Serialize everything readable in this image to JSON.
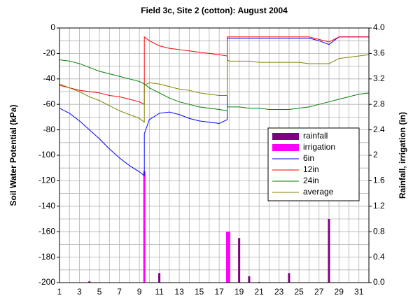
{
  "chart_data": {
    "type": "line",
    "title": "Field 3c, Site 2 (cotton):  August 2004",
    "ylabel": "Soil Water Potential  (kPa)",
    "y2label": "Rainfall, irrigation  (in)",
    "xlim": [
      1,
      32
    ],
    "xticks": [
      1,
      3,
      5,
      7,
      9,
      11,
      13,
      15,
      17,
      19,
      21,
      23,
      25,
      27,
      29,
      31
    ],
    "ylim": [
      -200,
      0
    ],
    "yticks": [
      -200,
      -180,
      -160,
      -140,
      -120,
      -100,
      -80,
      -60,
      -40,
      -20,
      0
    ],
    "y2lim": [
      0,
      4
    ],
    "y2ticks": [
      {
        "value": 0,
        "label": "0.0"
      },
      0.4,
      0.8,
      1.2,
      1.6,
      2,
      2.4,
      2.8,
      3.2,
      3.6,
      {
        "value": 4,
        "label": "4.0"
      }
    ],
    "grid": true,
    "minor_grid": true,
    "legend": "center-right",
    "series": [
      {
        "name": "rainfall",
        "type": "bar",
        "axis": "y2",
        "color": "#800080",
        "x": [
          4,
          11,
          19,
          20,
          21,
          24,
          28
        ],
        "values": [
          0.02,
          0.15,
          0.7,
          0.1,
          0.01,
          0.15,
          1.0
        ]
      },
      {
        "name": "irrigation",
        "type": "bar",
        "axis": "y2",
        "color": "#ff00ff",
        "x": [
          9.5,
          17.8,
          18
        ],
        "values": [
          1.75,
          0.8,
          0.8
        ]
      },
      {
        "name": "6in",
        "type": "line",
        "color": "#0000ff",
        "x": [
          1,
          2,
          3,
          4,
          5,
          6,
          7,
          8,
          9,
          9.5,
          9.5,
          10,
          11,
          12,
          13,
          14,
          15,
          16,
          17,
          17.8,
          17.8,
          18,
          19,
          20,
          21,
          22,
          23,
          24,
          25,
          26,
          27,
          28,
          29,
          30,
          31,
          32
        ],
        "values": [
          -63,
          -67,
          -73,
          -80,
          -87,
          -95,
          -102,
          -108,
          -113,
          -116,
          -83,
          -72,
          -67,
          -66,
          -68,
          -71,
          -73,
          -74,
          -75,
          -72,
          -8,
          -8,
          -8,
          -8,
          -8,
          -8,
          -8,
          -8,
          -8,
          -8,
          -10,
          -13,
          -7,
          -7,
          -7,
          -7
        ]
      },
      {
        "name": "12in",
        "type": "line",
        "color": "#ff0000",
        "x": [
          1,
          2,
          3,
          4,
          5,
          6,
          7,
          8,
          9,
          9.5,
          9.5,
          10,
          11,
          12,
          13,
          14,
          15,
          16,
          17,
          17.8,
          17.8,
          18,
          19,
          20,
          21,
          22,
          23,
          24,
          25,
          26,
          27,
          28,
          29,
          30,
          31,
          32
        ],
        "values": [
          -45,
          -47,
          -49,
          -50,
          -51,
          -53,
          -54,
          -56,
          -58,
          -60,
          -7,
          -10,
          -14,
          -16,
          -17,
          -18,
          -19,
          -20,
          -21,
          -22,
          -7,
          -7,
          -7,
          -7,
          -7,
          -7,
          -7,
          -7,
          -7,
          -7,
          -9,
          -11,
          -7,
          -7,
          -7,
          -7
        ]
      },
      {
        "name": "24in",
        "type": "line",
        "color": "#008000",
        "x": [
          1,
          2,
          3,
          4,
          5,
          6,
          7,
          8,
          9,
          9.5,
          9.5,
          10,
          11,
          12,
          13,
          14,
          15,
          16,
          17,
          17.8,
          17.8,
          18,
          19,
          20,
          21,
          22,
          23,
          24,
          25,
          26,
          27,
          28,
          29,
          30,
          31,
          32
        ],
        "values": [
          -25,
          -26,
          -28,
          -31,
          -34,
          -36,
          -38,
          -40,
          -42,
          -44,
          -44,
          -47,
          -51,
          -55,
          -58,
          -60,
          -62,
          -63,
          -64,
          -65,
          -62,
          -62,
          -62,
          -63,
          -63,
          -64,
          -64,
          -64,
          -63,
          -62,
          -60,
          -58,
          -56,
          -54,
          -52,
          -51
        ]
      },
      {
        "name": "average",
        "type": "line",
        "color": "#808000",
        "x": [
          1,
          2,
          3,
          4,
          5,
          6,
          7,
          8,
          9,
          9.5,
          9.5,
          10,
          11,
          12,
          13,
          14,
          15,
          16,
          17,
          17.8,
          17.8,
          18,
          19,
          20,
          21,
          22,
          23,
          24,
          25,
          26,
          27,
          28,
          29,
          30,
          31,
          32
        ],
        "values": [
          -44,
          -47,
          -50,
          -54,
          -57,
          -61,
          -65,
          -68,
          -71,
          -74,
          -45,
          -43,
          -44,
          -46,
          -48,
          -49,
          -51,
          -52,
          -53,
          -53,
          -25,
          -26,
          -26,
          -26,
          -27,
          -27,
          -27,
          -27,
          -27,
          -28,
          -28,
          -28,
          -24,
          -23,
          -22,
          -21
        ]
      }
    ]
  }
}
